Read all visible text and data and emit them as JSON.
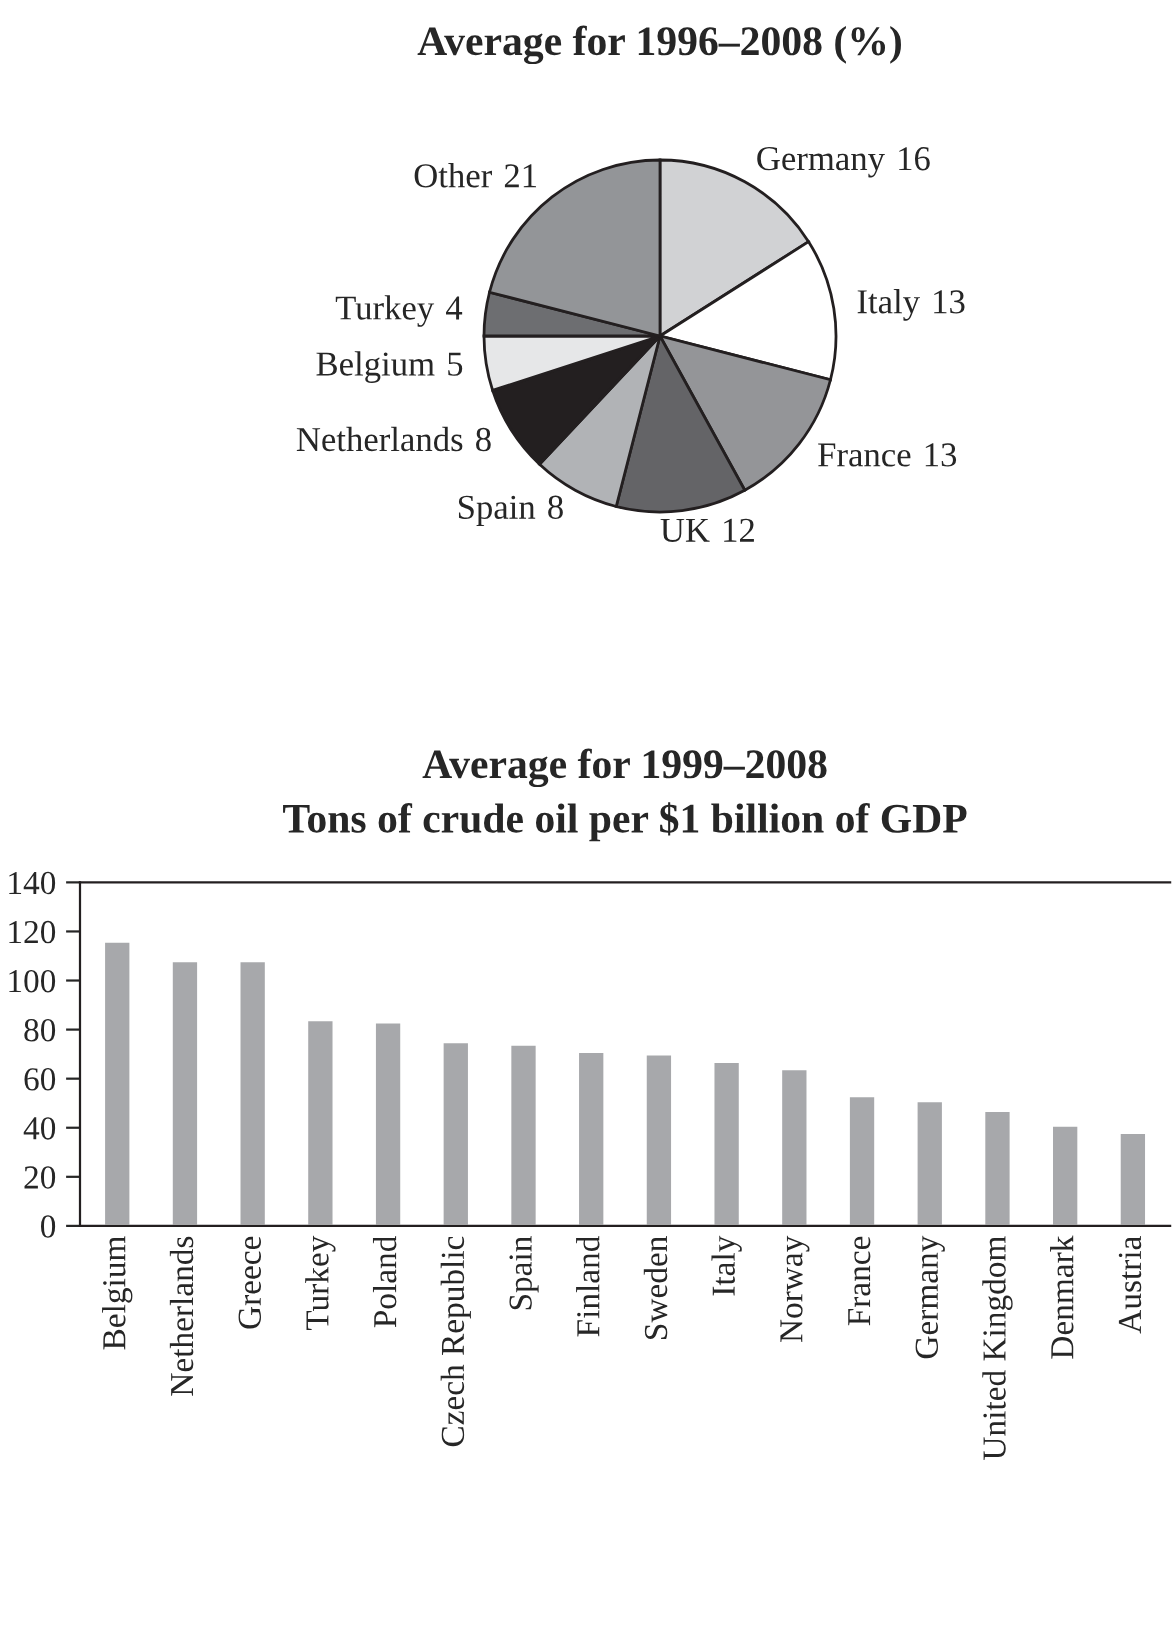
{
  "chart_data": [
    {
      "type": "pie",
      "title": "Average for 1996–2008 (%)",
      "categories": [
        "Germany",
        "Italy",
        "France",
        "UK",
        "Spain",
        "Netherlands",
        "Belgium",
        "Turkey",
        "Other"
      ],
      "values": [
        16,
        13,
        13,
        12,
        8,
        8,
        5,
        4,
        21
      ],
      "colors": [
        "#d1d2d4",
        "#ffffff",
        "#949598",
        "#646467",
        "#b1b3b6",
        "#231f20",
        "#e6e7e8",
        "#6d6e71",
        "#939598"
      ],
      "data_labels": true
    },
    {
      "type": "bar",
      "title": "Average for 1999–2008",
      "subtitle": "Tons of crude oil per $1 billion of GDP",
      "categories": [
        "Belgium",
        "Netherlands",
        "Greece",
        "Turkey",
        "Poland",
        "Czech Republic",
        "Spain",
        "Finland",
        "Sweden",
        "Italy",
        "Norway",
        "France",
        "Germany",
        "United Kingdom",
        "Denmark",
        "Austria"
      ],
      "values": [
        116,
        108,
        108,
        84,
        83,
        75,
        74,
        71,
        70,
        67,
        64,
        53,
        51,
        47,
        41,
        38
      ],
      "color": "#a7a8ab",
      "ylim": [
        0,
        140
      ],
      "yticks": [
        0,
        20,
        40,
        60,
        80,
        100,
        120,
        140
      ],
      "grid": false
    }
  ]
}
